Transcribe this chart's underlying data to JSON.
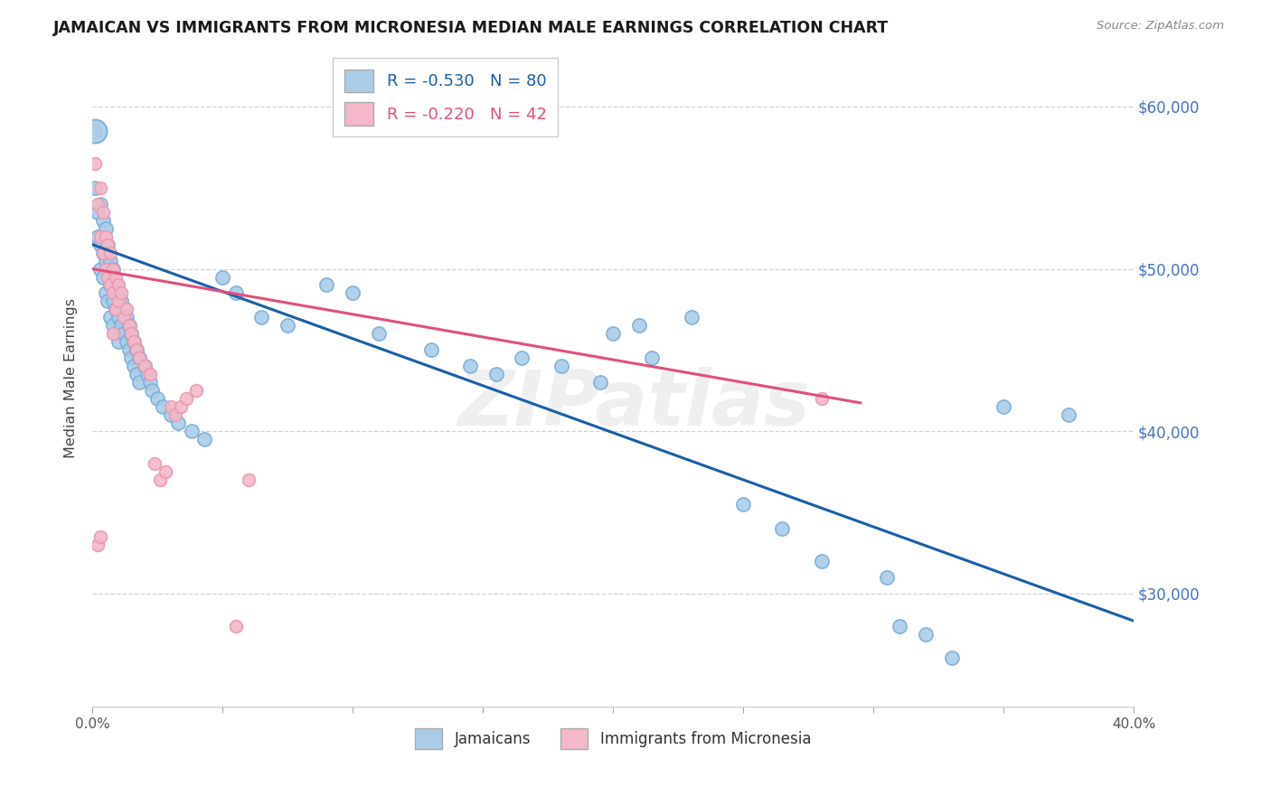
{
  "title": "JAMAICAN VS IMMIGRANTS FROM MICRONESIA MEDIAN MALE EARNINGS CORRELATION CHART",
  "source": "Source: ZipAtlas.com",
  "ylabel": "Median Male Earnings",
  "ytick_labels": [
    "$30,000",
    "$40,000",
    "$50,000",
    "$60,000"
  ],
  "ytick_values": [
    30000,
    40000,
    50000,
    60000
  ],
  "xlim": [
    0.0,
    0.4
  ],
  "ylim": [
    23000,
    63500
  ],
  "blue_R": -0.53,
  "blue_N": 80,
  "pink_R": -0.22,
  "pink_N": 42,
  "blue_color": "#aacce8",
  "pink_color": "#f4b8c8",
  "blue_edge_color": "#7aaed6",
  "pink_edge_color": "#e899b0",
  "blue_line_color": "#1a5fa8",
  "pink_line_color": "#e0507a",
  "blue_scatter": [
    [
      0.001,
      58500
    ],
    [
      0.001,
      55000
    ],
    [
      0.002,
      53500
    ],
    [
      0.002,
      52000
    ],
    [
      0.003,
      54000
    ],
    [
      0.003,
      51500
    ],
    [
      0.003,
      50000
    ],
    [
      0.004,
      53000
    ],
    [
      0.004,
      51000
    ],
    [
      0.004,
      49500
    ],
    [
      0.005,
      52500
    ],
    [
      0.005,
      50500
    ],
    [
      0.005,
      48500
    ],
    [
      0.006,
      51500
    ],
    [
      0.006,
      50000
    ],
    [
      0.006,
      48000
    ],
    [
      0.007,
      50500
    ],
    [
      0.007,
      49000
    ],
    [
      0.007,
      47000
    ],
    [
      0.008,
      50000
    ],
    [
      0.008,
      48000
    ],
    [
      0.008,
      46500
    ],
    [
      0.009,
      49000
    ],
    [
      0.009,
      47500
    ],
    [
      0.009,
      46000
    ],
    [
      0.01,
      48500
    ],
    [
      0.01,
      47000
    ],
    [
      0.01,
      45500
    ],
    [
      0.011,
      48000
    ],
    [
      0.011,
      46500
    ],
    [
      0.012,
      47500
    ],
    [
      0.012,
      46000
    ],
    [
      0.013,
      47000
    ],
    [
      0.013,
      45500
    ],
    [
      0.014,
      46500
    ],
    [
      0.014,
      45000
    ],
    [
      0.015,
      46000
    ],
    [
      0.015,
      44500
    ],
    [
      0.016,
      45500
    ],
    [
      0.016,
      44000
    ],
    [
      0.017,
      45000
    ],
    [
      0.017,
      43500
    ],
    [
      0.018,
      44500
    ],
    [
      0.018,
      43000
    ],
    [
      0.02,
      44000
    ],
    [
      0.021,
      43500
    ],
    [
      0.022,
      43000
    ],
    [
      0.023,
      42500
    ],
    [
      0.025,
      42000
    ],
    [
      0.027,
      41500
    ],
    [
      0.03,
      41000
    ],
    [
      0.033,
      40500
    ],
    [
      0.038,
      40000
    ],
    [
      0.043,
      39500
    ],
    [
      0.05,
      49500
    ],
    [
      0.055,
      48500
    ],
    [
      0.065,
      47000
    ],
    [
      0.075,
      46500
    ],
    [
      0.09,
      49000
    ],
    [
      0.1,
      48500
    ],
    [
      0.11,
      46000
    ],
    [
      0.13,
      45000
    ],
    [
      0.145,
      44000
    ],
    [
      0.155,
      43500
    ],
    [
      0.165,
      44500
    ],
    [
      0.18,
      44000
    ],
    [
      0.195,
      43000
    ],
    [
      0.2,
      46000
    ],
    [
      0.21,
      46500
    ],
    [
      0.215,
      44500
    ],
    [
      0.23,
      47000
    ],
    [
      0.25,
      35500
    ],
    [
      0.265,
      34000
    ],
    [
      0.28,
      32000
    ],
    [
      0.305,
      31000
    ],
    [
      0.31,
      28000
    ],
    [
      0.32,
      27500
    ],
    [
      0.33,
      26000
    ],
    [
      0.35,
      41500
    ],
    [
      0.375,
      41000
    ]
  ],
  "pink_scatter": [
    [
      0.001,
      56500
    ],
    [
      0.002,
      54000
    ],
    [
      0.003,
      55000
    ],
    [
      0.003,
      52000
    ],
    [
      0.004,
      53500
    ],
    [
      0.004,
      51000
    ],
    [
      0.005,
      52000
    ],
    [
      0.005,
      50000
    ],
    [
      0.006,
      51500
    ],
    [
      0.006,
      49500
    ],
    [
      0.007,
      51000
    ],
    [
      0.007,
      49000
    ],
    [
      0.008,
      50000
    ],
    [
      0.008,
      48500
    ],
    [
      0.009,
      49500
    ],
    [
      0.009,
      47500
    ],
    [
      0.01,
      49000
    ],
    [
      0.01,
      48000
    ],
    [
      0.011,
      48500
    ],
    [
      0.012,
      47000
    ],
    [
      0.013,
      47500
    ],
    [
      0.014,
      46500
    ],
    [
      0.015,
      46000
    ],
    [
      0.016,
      45500
    ],
    [
      0.017,
      45000
    ],
    [
      0.018,
      44500
    ],
    [
      0.02,
      44000
    ],
    [
      0.022,
      43500
    ],
    [
      0.002,
      33000
    ],
    [
      0.003,
      33500
    ],
    [
      0.024,
      38000
    ],
    [
      0.026,
      37000
    ],
    [
      0.028,
      37500
    ],
    [
      0.03,
      41500
    ],
    [
      0.032,
      41000
    ],
    [
      0.034,
      41500
    ],
    [
      0.036,
      42000
    ],
    [
      0.04,
      42500
    ],
    [
      0.055,
      28000
    ],
    [
      0.06,
      37000
    ],
    [
      0.28,
      42000
    ],
    [
      0.008,
      46000
    ]
  ],
  "watermark": "ZIPatlas",
  "legend_jamaicans": "Jamaicans",
  "legend_micronesia": "Immigrants from Micronesia",
  "blue_intercept": 51500,
  "blue_slope": -58000,
  "pink_intercept": 50000,
  "pink_slope": -28000
}
